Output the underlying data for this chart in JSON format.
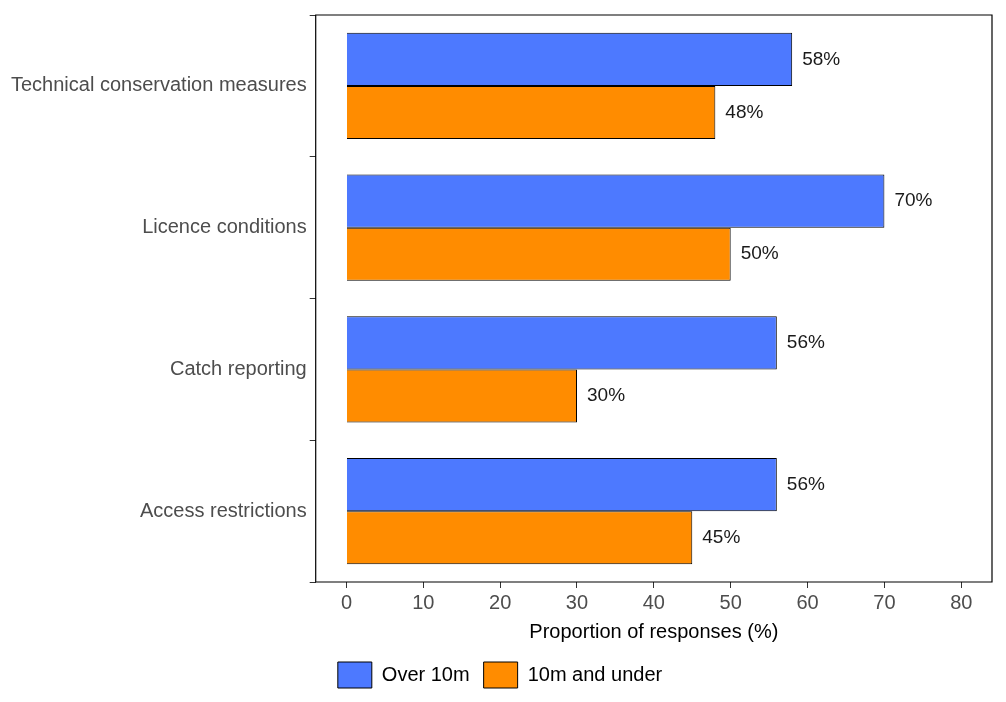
{
  "chart_data": {
    "type": "bar",
    "orientation": "horizontal",
    "xlabel": "Proportion of responses (%)",
    "categories": [
      "Technical conservation measures",
      "Licence conditions",
      "Catch reporting",
      "Access restrictions"
    ],
    "series": [
      {
        "name": "Over 10m",
        "color": "#4d79ff",
        "values": [
          58,
          70,
          56,
          56
        ],
        "value_labels": [
          "58%",
          "70%",
          "56%",
          "56%"
        ]
      },
      {
        "name": "10m and under",
        "color": "#ff8c00",
        "values": [
          48,
          50,
          30,
          45
        ],
        "value_labels": [
          "48%",
          "50%",
          "30%",
          "45%"
        ]
      }
    ],
    "xlim": [
      -4,
      84
    ],
    "xticks": [
      0,
      10,
      20,
      30,
      40,
      50,
      60,
      70,
      80
    ],
    "grid": false,
    "legend": "bottom"
  }
}
